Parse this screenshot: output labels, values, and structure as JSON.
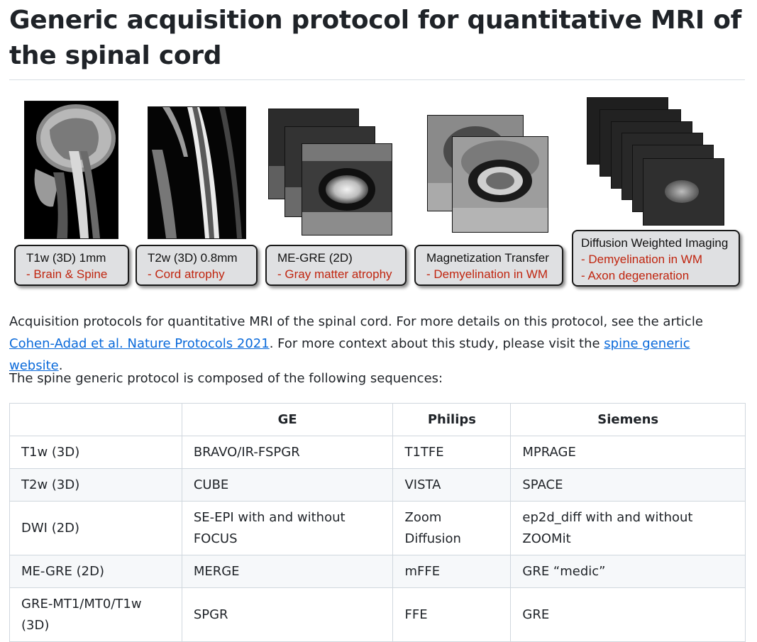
{
  "page": {
    "title": "Generic acquisition protocol for quantitative MRI of the spinal cord"
  },
  "figure": {
    "cards": [
      {
        "heading": "T1w (3D) 1mm",
        "lines": [
          "- Brain & Spine"
        ]
      },
      {
        "heading": "T2w (3D) 0.8mm",
        "lines": [
          "- Cord atrophy"
        ]
      },
      {
        "heading": "ME-GRE (2D)",
        "lines": [
          "- Gray matter atrophy"
        ]
      },
      {
        "heading": "Magnetization Transfer",
        "lines": [
          "- Demyelination in WM"
        ]
      },
      {
        "heading": "Diffusion Weighted Imaging",
        "lines": [
          "- Demyelination in WM",
          "- Axon degeneration"
        ]
      }
    ]
  },
  "intro": {
    "text_before": "Acquisition protocols for quantitative MRI of the spinal cord. For more details on this protocol, see the article ",
    "article_link": "Cohen-Adad et al. Nature Protocols 2021",
    "text_middle": ". For more context about this study, please visit the ",
    "website_link": "spine generic website",
    "text_after": "."
  },
  "composition_text": "The spine generic protocol is composed of the following sequences:",
  "table": {
    "headers": [
      "",
      "GE",
      "Philips",
      "Siemens"
    ],
    "rows": [
      [
        "T1w (3D)",
        "BRAVO/IR-FSPGR",
        "T1TFE",
        "MPRAGE"
      ],
      [
        "T2w (3D)",
        "CUBE",
        "VISTA",
        "SPACE"
      ],
      [
        "DWI (2D)",
        "SE-EPI with and without FOCUS",
        "Zoom Diffusion",
        "ep2d_diff with and without ZOOMit"
      ],
      [
        "ME-GRE (2D)",
        "MERGE",
        "mFFE",
        "GRE “medic”"
      ],
      [
        "GRE-MT1/MT0/T1w (3D)",
        "SPGR",
        "FFE",
        "GRE"
      ]
    ]
  }
}
